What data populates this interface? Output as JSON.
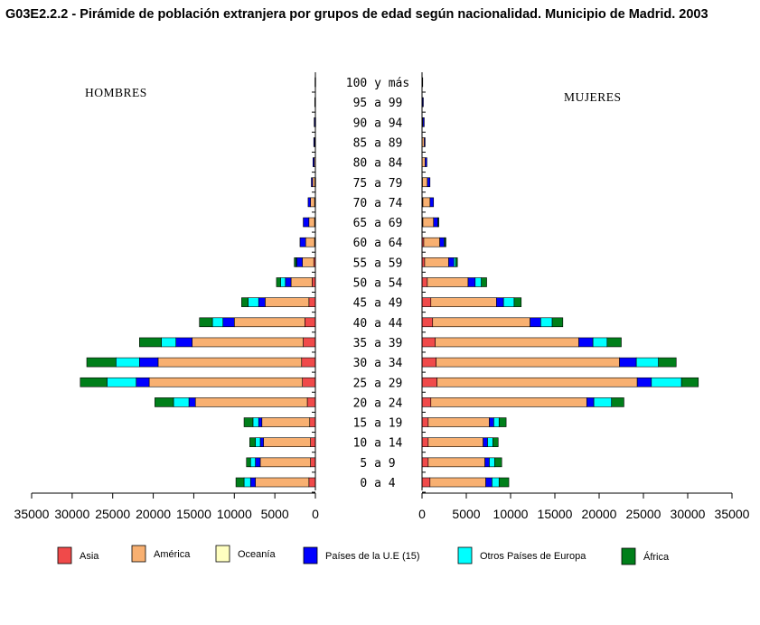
{
  "title": "G03E2.2.2 -  Pirámide de población extranjera por grupos de edad según nacionalidad. Municipio de  Madrid. 2003",
  "chart_data": {
    "type": "bar",
    "orientation": "horizontal-pyramid",
    "left_title": "HOMBRES",
    "right_title": "MUJERES",
    "categories": [
      "100 y más",
      "95 a 99",
      "90 a 94",
      "85 a 89",
      "80 a 84",
      "75 a 79",
      "70 a 74",
      "65 a 69",
      "60 a 64",
      "55 a 59",
      "50 a 54",
      "45 a 49",
      "40 a 44",
      "35 a 39",
      "30 a 34",
      "25 a 29",
      "20 a 24",
      "15 a 19",
      "10 a 14",
      "5 a 9",
      "0 a 4"
    ],
    "series_names": [
      "Asia",
      "América",
      "Oceanía",
      "Países de la U.E (15)",
      "Otros Países de Europa",
      "África"
    ],
    "colors": [
      "#f04a4a",
      "#f8b071",
      "#ffffc0",
      "#0000ff",
      "#00ffff",
      "#007f1a"
    ],
    "xlim": [
      0,
      35000
    ],
    "ticks": [
      "35000",
      "30000",
      "25000",
      "20000",
      "15000",
      "10000",
      "5000",
      "0"
    ],
    "ticks_right": [
      "0",
      "5000",
      "10000",
      "15000",
      "20000",
      "25000",
      "30000",
      "35000"
    ],
    "hombres": [
      [
        0,
        0,
        0,
        50,
        0,
        0
      ],
      [
        0,
        0,
        0,
        80,
        0,
        0
      ],
      [
        0,
        50,
        0,
        100,
        0,
        0
      ],
      [
        0,
        100,
        0,
        100,
        0,
        0
      ],
      [
        0,
        150,
        0,
        150,
        0,
        0
      ],
      [
        50,
        300,
        0,
        150,
        0,
        0
      ],
      [
        100,
        500,
        0,
        300,
        0,
        0
      ],
      [
        100,
        700,
        0,
        700,
        0,
        0
      ],
      [
        100,
        1100,
        0,
        700,
        0,
        0
      ],
      [
        200,
        1400,
        0,
        700,
        100,
        200
      ],
      [
        400,
        2600,
        0,
        700,
        600,
        500
      ],
      [
        800,
        5400,
        0,
        800,
        1300,
        800
      ],
      [
        1300,
        8700,
        0,
        1400,
        1300,
        1600
      ],
      [
        1500,
        13700,
        0,
        2000,
        1800,
        2700
      ],
      [
        1700,
        17700,
        0,
        2300,
        2900,
        3600
      ],
      [
        1600,
        18900,
        0,
        1600,
        3600,
        3300
      ],
      [
        1000,
        13800,
        0,
        800,
        1900,
        2300
      ],
      [
        700,
        5900,
        0,
        400,
        700,
        1100
      ],
      [
        600,
        5800,
        0,
        400,
        600,
        700
      ],
      [
        600,
        6200,
        0,
        600,
        600,
        500
      ],
      [
        800,
        6600,
        0,
        600,
        800,
        1000
      ]
    ],
    "mujeres": [
      [
        0,
        0,
        0,
        50,
        0,
        0
      ],
      [
        0,
        50,
        0,
        100,
        0,
        0
      ],
      [
        0,
        100,
        0,
        150,
        0,
        0
      ],
      [
        0,
        250,
        0,
        100,
        0,
        0
      ],
      [
        0,
        350,
        0,
        200,
        0,
        0
      ],
      [
        50,
        550,
        0,
        300,
        0,
        0
      ],
      [
        100,
        800,
        0,
        400,
        0,
        0
      ],
      [
        100,
        1200,
        0,
        500,
        0,
        100
      ],
      [
        200,
        1800,
        0,
        500,
        100,
        100
      ],
      [
        300,
        2700,
        0,
        600,
        200,
        200
      ],
      [
        600,
        4600,
        0,
        800,
        700,
        600
      ],
      [
        1000,
        7400,
        0,
        800,
        1200,
        800
      ],
      [
        1200,
        11000,
        0,
        1200,
        1300,
        1200
      ],
      [
        1500,
        16200,
        0,
        1600,
        1600,
        1600
      ],
      [
        1600,
        20700,
        0,
        1900,
        2500,
        2000
      ],
      [
        1700,
        22600,
        0,
        1600,
        3400,
        1900
      ],
      [
        1000,
        17600,
        0,
        800,
        2000,
        1400
      ],
      [
        700,
        6900,
        0,
        500,
        600,
        800
      ],
      [
        700,
        6200,
        0,
        500,
        600,
        600
      ],
      [
        700,
        6400,
        0,
        500,
        600,
        800
      ],
      [
        900,
        6300,
        0,
        700,
        800,
        1100
      ]
    ]
  }
}
